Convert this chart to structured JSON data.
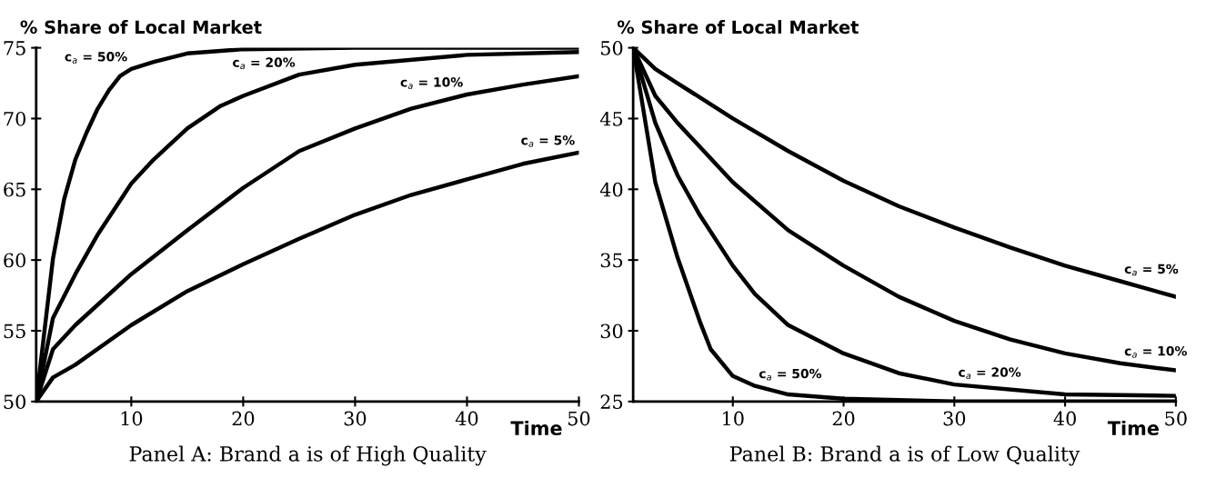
{
  "chart_data": [
    {
      "type": "line",
      "title": "Panel A: Brand a is of High Quality",
      "xlabel": "Time",
      "ylabel": "% Share of Local Market",
      "xlim": [
        1.5,
        50
      ],
      "xticks": [
        10,
        20,
        30,
        40,
        50
      ],
      "ylim": [
        50,
        75
      ],
      "yticks": [
        50,
        55,
        60,
        65,
        70,
        75
      ],
      "grid": false,
      "legend": false,
      "line_style": "solid",
      "series": [
        {
          "color": "#000000",
          "x": [
            1.5,
            3,
            4,
            5,
            6,
            7,
            8,
            9,
            10,
            12,
            15,
            20,
            30,
            40,
            50
          ],
          "values": [
            50,
            60.1,
            64.3,
            67.1,
            69.0,
            70.7,
            72.0,
            73.0,
            73.5,
            74.0,
            74.6,
            74.9,
            75,
            75,
            75
          ]
        },
        {
          "color": "#000000",
          "x": [
            1.5,
            3,
            5,
            7,
            10,
            12,
            15,
            18,
            20,
            25,
            30,
            40,
            50
          ],
          "values": [
            50,
            55.9,
            59.0,
            61.8,
            65.4,
            67.1,
            69.3,
            70.9,
            71.6,
            73.1,
            73.8,
            74.5,
            74.7
          ]
        },
        {
          "color": "#000000",
          "x": [
            1.5,
            3,
            5,
            10,
            15,
            20,
            25,
            30,
            35,
            40,
            45,
            50
          ],
          "values": [
            50,
            53.7,
            55.4,
            59.0,
            62.1,
            65.1,
            67.7,
            69.3,
            70.7,
            71.7,
            72.4,
            73.0
          ]
        },
        {
          "color": "#000000",
          "x": [
            1.5,
            3,
            5,
            10,
            15,
            20,
            25,
            30,
            35,
            40,
            45,
            50
          ],
          "values": [
            50,
            51.7,
            52.6,
            55.4,
            57.8,
            59.7,
            61.5,
            63.2,
            64.6,
            65.7,
            66.8,
            67.6
          ]
        }
      ],
      "annotations": [
        {
          "text": "c$_{a}$ = 50%",
          "x": 10,
          "y": 73.5
        },
        {
          "text": "c$_{a}$ = 20%",
          "x": 25,
          "y": 73.1
        },
        {
          "text": "c$_{a}$ = 10%",
          "x": 40,
          "y": 71.7
        },
        {
          "text": "c$_{a}$ = 5%",
          "x": 50,
          "y": 67.6
        }
      ]
    },
    {
      "type": "line",
      "title": "Panel B: Brand a is of Low Quality",
      "xlabel": "Time",
      "ylabel": "% Share of Local Market",
      "xlim": [
        1,
        50
      ],
      "xticks": [
        10,
        20,
        30,
        40,
        50
      ],
      "ylim": [
        25,
        50
      ],
      "yticks": [
        25,
        30,
        35,
        40,
        45,
        50
      ],
      "grid": false,
      "legend": false,
      "line_style": "solid",
      "series": [
        {
          "color": "#000000",
          "x": [
            1,
            3,
            5,
            7,
            8,
            10,
            12,
            15,
            20,
            30,
            40,
            50
          ],
          "values": [
            50,
            40.5,
            35.2,
            30.7,
            28.7,
            26.8,
            26.1,
            25.5,
            25.2,
            25.0,
            25.0,
            25.0
          ]
        },
        {
          "color": "#000000",
          "x": [
            1,
            3,
            5,
            7,
            10,
            12,
            15,
            20,
            25,
            30,
            40,
            50
          ],
          "values": [
            50,
            44.7,
            41.0,
            38.2,
            34.6,
            32.6,
            30.4,
            28.4,
            27.0,
            26.2,
            25.5,
            25.4
          ]
        },
        {
          "color": "#000000",
          "x": [
            1,
            3,
            5,
            10,
            15,
            20,
            25,
            30,
            35,
            40,
            45,
            50
          ],
          "values": [
            50,
            46.6,
            44.7,
            40.5,
            37.1,
            34.6,
            32.4,
            30.7,
            29.4,
            28.4,
            27.7,
            27.2
          ]
        },
        {
          "color": "#000000",
          "x": [
            1,
            3,
            5,
            10,
            15,
            20,
            25,
            30,
            35,
            40,
            45,
            50
          ],
          "values": [
            50,
            48.5,
            47.5,
            45.0,
            42.7,
            40.6,
            38.8,
            37.3,
            35.9,
            34.6,
            33.5,
            32.4
          ]
        }
      ],
      "annotations": [
        {
          "text": "c$_{a}$ = 50%",
          "x": 12,
          "y": 26.1
        },
        {
          "text": "c$_{a}$ = 20%",
          "x": 30,
          "y": 26.2
        },
        {
          "text": "c$_{a}$ = 10%",
          "x": 45,
          "y": 27.7
        },
        {
          "text": "c$_{a}$ = 5%",
          "x": 45,
          "y": 33.5
        }
      ]
    }
  ]
}
